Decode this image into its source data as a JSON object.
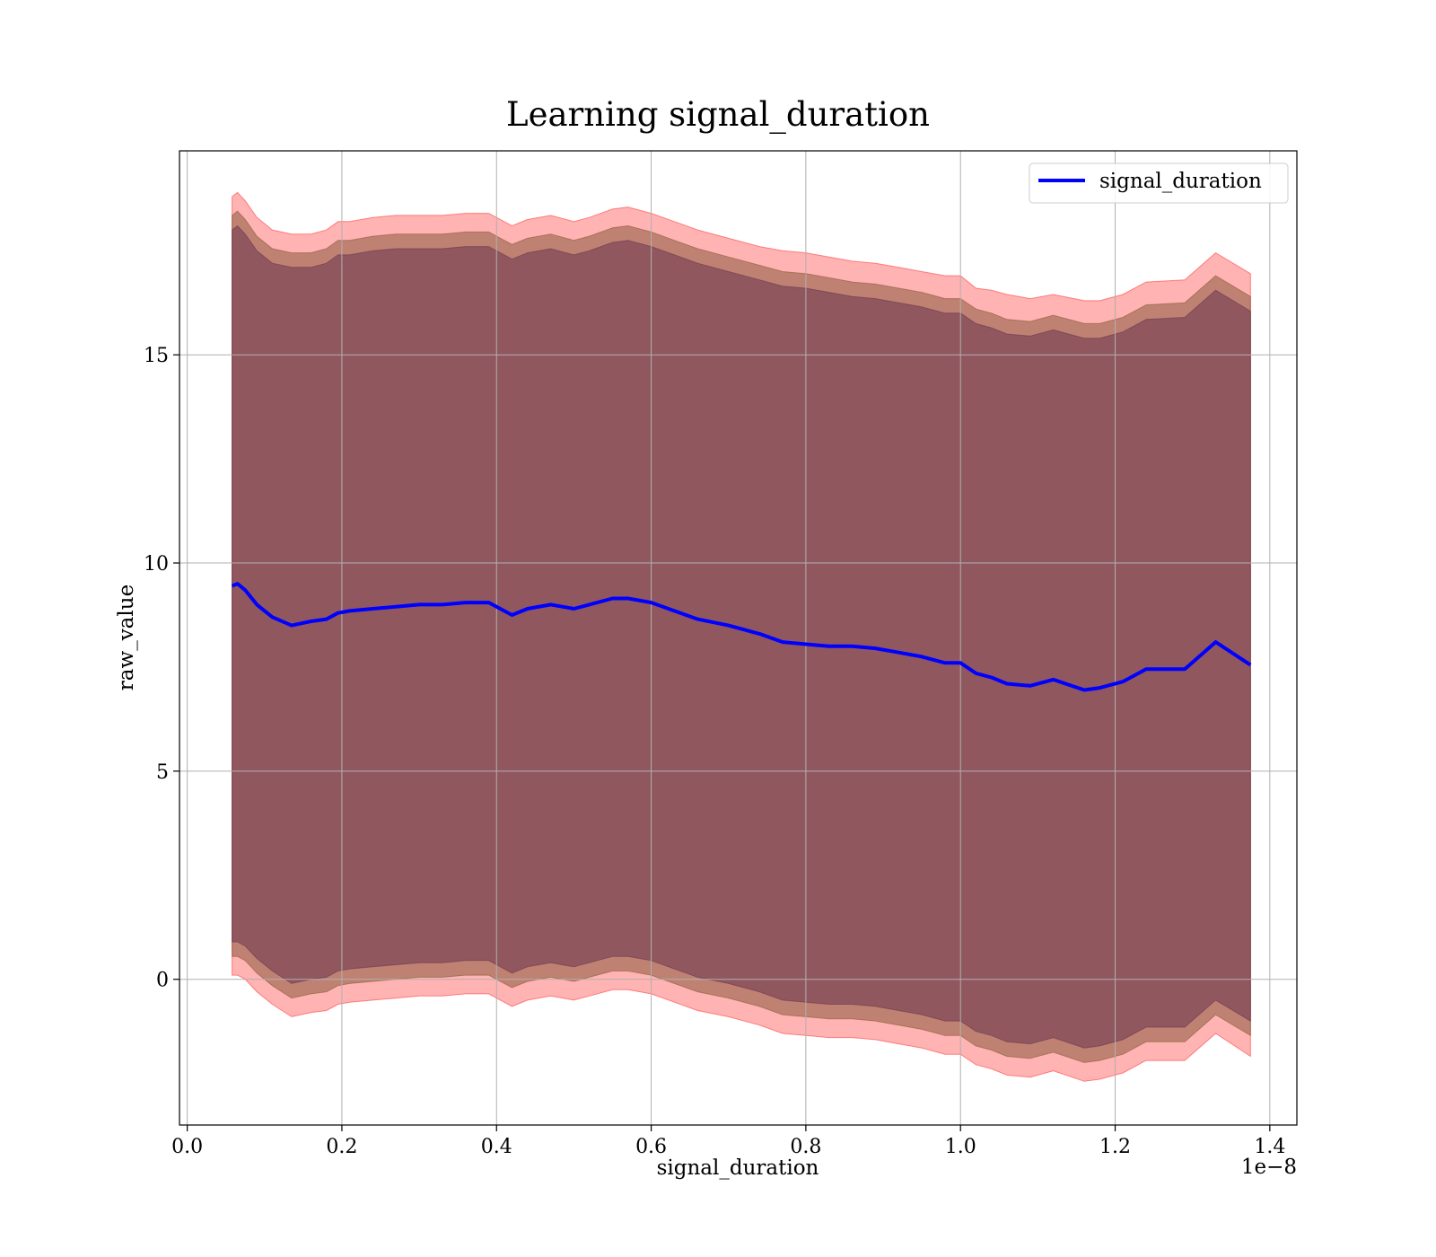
{
  "chart_data": {
    "type": "line",
    "title": "Learning signal_duration",
    "xlabel": "signal_duration",
    "ylabel": "raw_value",
    "x_offset_label": "1e−8",
    "xlim": [
      -0.01,
      1.435
    ],
    "ylim": [
      -3.5,
      19.9
    ],
    "x_ticks": [
      0.0,
      0.2,
      0.4,
      0.6,
      0.8,
      1.0,
      1.2,
      1.4
    ],
    "x_tick_labels": [
      "0.0",
      "0.2",
      "0.4",
      "0.6",
      "0.8",
      "1.0",
      "1.2",
      "1.4"
    ],
    "y_ticks": [
      0,
      5,
      10,
      15
    ],
    "y_tick_labels": [
      "0",
      "5",
      "10",
      "15"
    ],
    "grid": true,
    "legend_position": "top-right",
    "x": [
      0.058,
      0.065,
      0.075,
      0.09,
      0.11,
      0.135,
      0.16,
      0.18,
      0.195,
      0.21,
      0.24,
      0.27,
      0.3,
      0.33,
      0.36,
      0.39,
      0.42,
      0.44,
      0.47,
      0.5,
      0.52,
      0.55,
      0.57,
      0.6,
      0.63,
      0.66,
      0.7,
      0.74,
      0.77,
      0.8,
      0.83,
      0.86,
      0.89,
      0.92,
      0.95,
      0.98,
      1.0,
      1.02,
      1.04,
      1.06,
      1.09,
      1.12,
      1.16,
      1.18,
      1.21,
      1.24,
      1.29,
      1.33,
      1.375
    ],
    "series": [
      {
        "name": "signal_duration",
        "color": "#0000ff",
        "values": [
          9.45,
          9.5,
          9.35,
          9.0,
          8.7,
          8.5,
          8.6,
          8.65,
          8.8,
          8.85,
          8.9,
          8.95,
          9.0,
          9.0,
          9.05,
          9.05,
          8.75,
          8.9,
          9.0,
          8.9,
          9.0,
          9.15,
          9.15,
          9.05,
          8.85,
          8.65,
          8.5,
          8.3,
          8.1,
          8.05,
          8.0,
          8.0,
          7.95,
          7.85,
          7.75,
          7.6,
          7.6,
          7.35,
          7.25,
          7.1,
          7.05,
          7.2,
          6.95,
          7.0,
          7.15,
          7.45,
          7.45,
          8.1,
          7.55
        ]
      }
    ],
    "bands": [
      {
        "color": "#ff4040",
        "opacity": 0.4,
        "upper": [
          18.8,
          18.9,
          18.7,
          18.3,
          18.0,
          17.9,
          17.9,
          18.0,
          18.2,
          18.2,
          18.3,
          18.35,
          18.35,
          18.35,
          18.4,
          18.4,
          18.1,
          18.25,
          18.35,
          18.2,
          18.3,
          18.5,
          18.55,
          18.4,
          18.2,
          18.0,
          17.8,
          17.6,
          17.5,
          17.45,
          17.35,
          17.25,
          17.2,
          17.1,
          17.0,
          16.9,
          16.9,
          16.6,
          16.55,
          16.45,
          16.35,
          16.45,
          16.3,
          16.3,
          16.45,
          16.75,
          16.8,
          17.45,
          16.95
        ],
        "lower": [
          0.1,
          0.1,
          0.0,
          -0.3,
          -0.6,
          -0.9,
          -0.8,
          -0.75,
          -0.6,
          -0.55,
          -0.5,
          -0.45,
          -0.4,
          -0.4,
          -0.35,
          -0.35,
          -0.65,
          -0.5,
          -0.4,
          -0.5,
          -0.4,
          -0.25,
          -0.25,
          -0.35,
          -0.55,
          -0.75,
          -0.9,
          -1.1,
          -1.3,
          -1.35,
          -1.4,
          -1.4,
          -1.45,
          -1.55,
          -1.65,
          -1.8,
          -1.8,
          -2.05,
          -2.15,
          -2.3,
          -2.35,
          -2.2,
          -2.45,
          -2.4,
          -2.25,
          -1.95,
          -1.95,
          -1.3,
          -1.85
        ]
      },
      {
        "color": "#8b5a3c",
        "opacity": 0.55,
        "upper": [
          18.35,
          18.45,
          18.25,
          17.85,
          17.55,
          17.45,
          17.45,
          17.55,
          17.75,
          17.75,
          17.85,
          17.9,
          17.9,
          17.9,
          17.95,
          17.95,
          17.65,
          17.8,
          17.9,
          17.75,
          17.85,
          18.05,
          18.1,
          17.95,
          17.75,
          17.55,
          17.35,
          17.15,
          17.0,
          16.95,
          16.85,
          16.75,
          16.7,
          16.6,
          16.5,
          16.35,
          16.35,
          16.1,
          16.0,
          15.85,
          15.8,
          15.95,
          15.75,
          15.75,
          15.9,
          16.2,
          16.25,
          16.9,
          16.4
        ],
        "lower": [
          0.55,
          0.55,
          0.45,
          0.15,
          -0.15,
          -0.45,
          -0.35,
          -0.3,
          -0.15,
          -0.1,
          -0.05,
          0.0,
          0.05,
          0.05,
          0.1,
          0.1,
          -0.2,
          -0.05,
          0.05,
          -0.05,
          0.05,
          0.2,
          0.2,
          0.1,
          -0.1,
          -0.3,
          -0.45,
          -0.65,
          -0.85,
          -0.9,
          -0.95,
          -0.95,
          -1.0,
          -1.1,
          -1.2,
          -1.35,
          -1.35,
          -1.6,
          -1.7,
          -1.85,
          -1.9,
          -1.75,
          -2.0,
          -1.95,
          -1.8,
          -1.5,
          -1.5,
          -0.85,
          -1.35
        ]
      },
      {
        "color": "#6b3550",
        "opacity": 0.55,
        "upper": [
          18.0,
          18.1,
          17.9,
          17.5,
          17.2,
          17.1,
          17.1,
          17.2,
          17.4,
          17.4,
          17.5,
          17.55,
          17.55,
          17.55,
          17.6,
          17.6,
          17.3,
          17.45,
          17.55,
          17.4,
          17.5,
          17.7,
          17.75,
          17.6,
          17.4,
          17.2,
          17.0,
          16.8,
          16.65,
          16.6,
          16.5,
          16.4,
          16.35,
          16.25,
          16.15,
          16.0,
          16.0,
          15.75,
          15.65,
          15.5,
          15.45,
          15.6,
          15.4,
          15.4,
          15.55,
          15.85,
          15.9,
          16.55,
          16.05
        ],
        "lower": [
          0.9,
          0.9,
          0.8,
          0.5,
          0.2,
          -0.1,
          0.0,
          0.05,
          0.2,
          0.25,
          0.3,
          0.35,
          0.4,
          0.4,
          0.45,
          0.45,
          0.15,
          0.3,
          0.4,
          0.3,
          0.4,
          0.55,
          0.55,
          0.45,
          0.25,
          0.05,
          -0.1,
          -0.3,
          -0.5,
          -0.55,
          -0.6,
          -0.6,
          -0.65,
          -0.75,
          -0.85,
          -1.0,
          -1.0,
          -1.25,
          -1.35,
          -1.5,
          -1.55,
          -1.4,
          -1.65,
          -1.6,
          -1.45,
          -1.15,
          -1.15,
          -0.5,
          -1.0
        ]
      }
    ]
  }
}
